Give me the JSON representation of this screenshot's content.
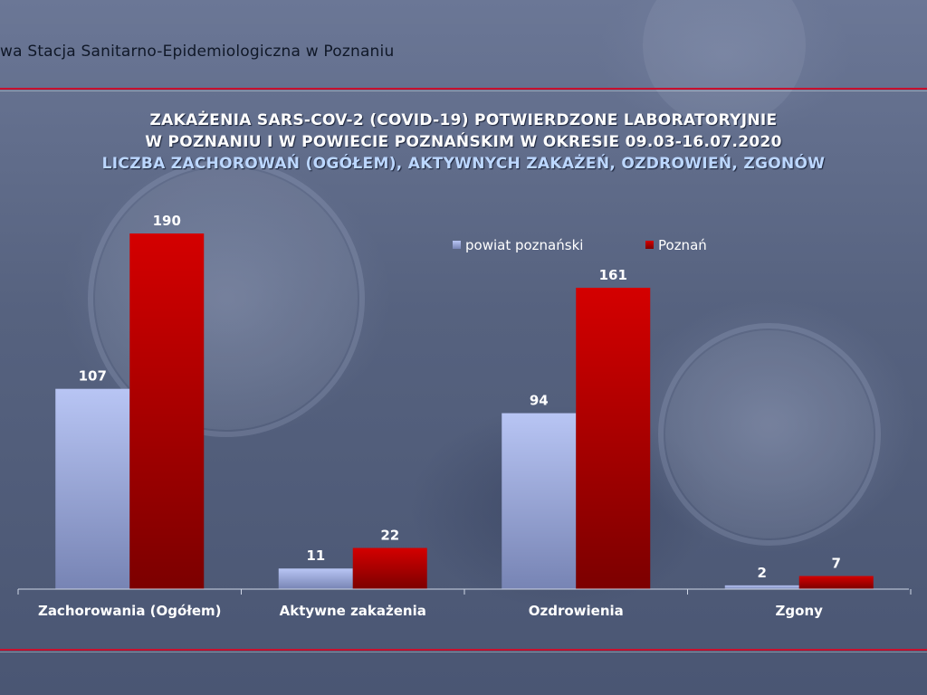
{
  "header": {
    "organization": "wa Stacja Sanitarno-Epidemiologiczna w Poznaniu"
  },
  "chart_data": {
    "type": "bar",
    "title_lines": [
      "ZAKAŻENIA SARS-COV-2 (COVID-19) POTWIERDZONE LABORATORYJNIE",
      "W POZNANIU I W POWIECIE POZNAŃSKIM W OKRESIE 09.03-16.07.2020",
      "LICZBA ZACHOROWAŃ (OGÓŁEM), AKTYWNYCH ZAKAŻEŃ, OZDROWIEŃ, ZGONÓW"
    ],
    "categories": [
      "Zachorowania (Ogółem)",
      "Aktywne zakażenia",
      "Ozdrowienia",
      "Zgony"
    ],
    "series": [
      {
        "name": "powiat poznański",
        "values": [
          107,
          11,
          94,
          2
        ],
        "color": "#a9b8ec"
      },
      {
        "name": "Poznań",
        "values": [
          190,
          22,
          161,
          7
        ],
        "color": "#c40000"
      }
    ],
    "ylim": [
      0,
      190
    ],
    "grid": false,
    "data_labels": true,
    "legend_position": "top-right",
    "colors": {
      "rule": "#c8102e",
      "title_highlight": "#bcd7ff"
    }
  }
}
